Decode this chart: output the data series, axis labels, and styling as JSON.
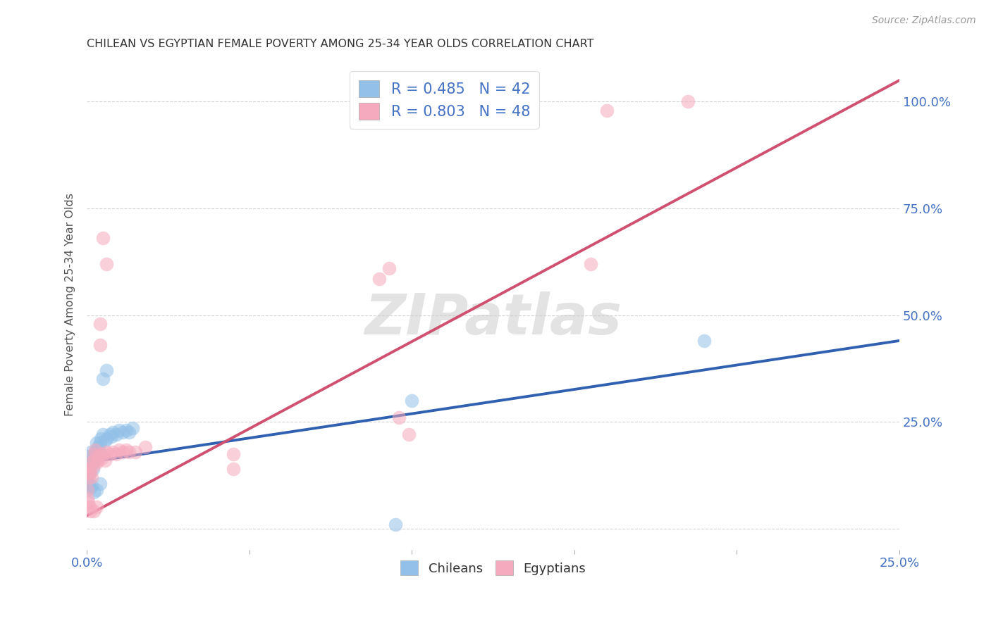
{
  "title": "CHILEAN VS EGYPTIAN FEMALE POVERTY AMONG 25-34 YEAR OLDS CORRELATION CHART",
  "source": "Source: ZipAtlas.com",
  "xlabel": "",
  "ylabel": "Female Poverty Among 25-34 Year Olds",
  "xlim": [
    0.0,
    0.25
  ],
  "ylim": [
    -0.05,
    1.1
  ],
  "chilean_R": 0.485,
  "chilean_N": 42,
  "egyptian_R": 0.803,
  "egyptian_N": 48,
  "chilean_color": "#92C0E8",
  "egyptian_color": "#F5AABD",
  "chilean_line_color": "#3060B0",
  "egyptian_line_color": "#D05070",
  "watermark": "ZIPatlas",
  "chilean_points": [
    [
      0.0003,
      0.17
    ],
    [
      0.0005,
      0.15
    ],
    [
      0.0008,
      0.13
    ],
    [
      0.001,
      0.145
    ],
    [
      0.0012,
      0.18
    ],
    [
      0.0015,
      0.16
    ],
    [
      0.0018,
      0.14
    ],
    [
      0.002,
      0.175
    ],
    [
      0.0022,
      0.16
    ],
    [
      0.0025,
      0.18
    ],
    [
      0.003,
      0.17
    ],
    [
      0.003,
      0.2
    ],
    [
      0.0035,
      0.19
    ],
    [
      0.004,
      0.2
    ],
    [
      0.004,
      0.175
    ],
    [
      0.0042,
      0.21
    ],
    [
      0.005,
      0.22
    ],
    [
      0.0055,
      0.205
    ],
    [
      0.006,
      0.21
    ],
    [
      0.007,
      0.22
    ],
    [
      0.0075,
      0.215
    ],
    [
      0.008,
      0.225
    ],
    [
      0.009,
      0.22
    ],
    [
      0.01,
      0.23
    ],
    [
      0.011,
      0.225
    ],
    [
      0.012,
      0.23
    ],
    [
      0.013,
      0.225
    ],
    [
      0.014,
      0.235
    ],
    [
      0.0001,
      0.145
    ],
    [
      0.0002,
      0.12
    ],
    [
      0.0003,
      0.105
    ],
    [
      0.0005,
      0.1
    ],
    [
      0.001,
      0.095
    ],
    [
      0.0015,
      0.1
    ],
    [
      0.002,
      0.085
    ],
    [
      0.003,
      0.09
    ],
    [
      0.004,
      0.105
    ],
    [
      0.005,
      0.35
    ],
    [
      0.006,
      0.37
    ],
    [
      0.1,
      0.3
    ],
    [
      0.19,
      0.44
    ],
    [
      0.095,
      0.01
    ]
  ],
  "egyptian_points": [
    [
      0.0002,
      0.14
    ],
    [
      0.0004,
      0.13
    ],
    [
      0.0006,
      0.12
    ],
    [
      0.0008,
      0.14
    ],
    [
      0.001,
      0.13
    ],
    [
      0.0012,
      0.155
    ],
    [
      0.0015,
      0.12
    ],
    [
      0.0018,
      0.145
    ],
    [
      0.002,
      0.175
    ],
    [
      0.0022,
      0.16
    ],
    [
      0.0025,
      0.185
    ],
    [
      0.003,
      0.155
    ],
    [
      0.0032,
      0.17
    ],
    [
      0.0035,
      0.16
    ],
    [
      0.004,
      0.175
    ],
    [
      0.0045,
      0.165
    ],
    [
      0.005,
      0.175
    ],
    [
      0.0055,
      0.16
    ],
    [
      0.006,
      0.18
    ],
    [
      0.007,
      0.175
    ],
    [
      0.008,
      0.18
    ],
    [
      0.009,
      0.175
    ],
    [
      0.01,
      0.185
    ],
    [
      0.011,
      0.18
    ],
    [
      0.012,
      0.185
    ],
    [
      0.013,
      0.18
    ],
    [
      0.015,
      0.18
    ],
    [
      0.018,
      0.19
    ],
    [
      0.0001,
      0.09
    ],
    [
      0.0002,
      0.07
    ],
    [
      0.0004,
      0.06
    ],
    [
      0.0008,
      0.05
    ],
    [
      0.001,
      0.04
    ],
    [
      0.002,
      0.04
    ],
    [
      0.003,
      0.05
    ],
    [
      0.004,
      0.43
    ],
    [
      0.006,
      0.62
    ],
    [
      0.045,
      0.14
    ],
    [
      0.045,
      0.175
    ],
    [
      0.09,
      0.585
    ],
    [
      0.093,
      0.61
    ],
    [
      0.155,
      0.62
    ],
    [
      0.16,
      0.98
    ],
    [
      0.185,
      1.0
    ],
    [
      0.004,
      0.48
    ],
    [
      0.005,
      0.68
    ],
    [
      0.096,
      0.26
    ],
    [
      0.099,
      0.22
    ]
  ],
  "chilean_line_x": [
    0.0,
    0.25
  ],
  "chilean_line_y": [
    0.155,
    0.44
  ],
  "egyptian_line_x": [
    0.0,
    0.25
  ],
  "egyptian_line_y": [
    0.03,
    1.05
  ],
  "background_color": "#FFFFFF",
  "grid_color": "#C8C8C8",
  "title_color": "#333333",
  "axis_label_color": "#555555",
  "tick_label_color_x": "#4472C4",
  "tick_label_color_y": "#4472C4"
}
